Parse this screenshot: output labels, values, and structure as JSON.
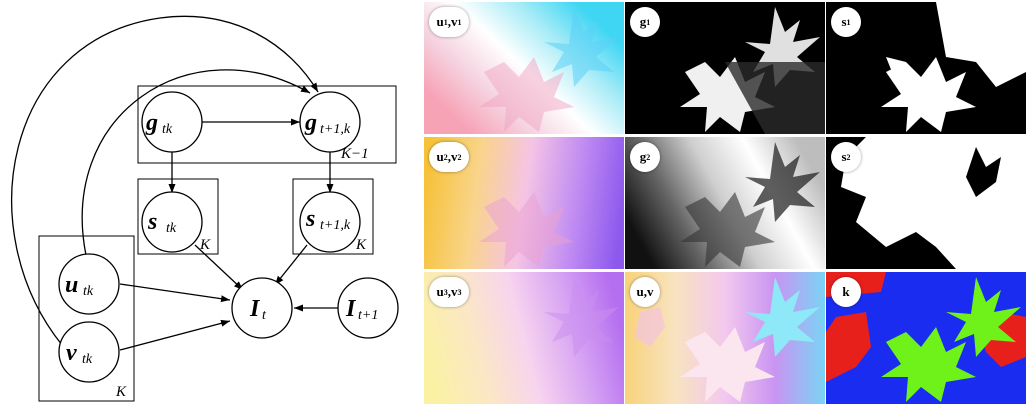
{
  "graphical_model": {
    "nodes": {
      "g_tk": {
        "symbol": "g",
        "sub": "tk"
      },
      "g_t1k": {
        "symbol": "g",
        "sub": "t+1,k"
      },
      "s_tk": {
        "symbol": "s",
        "sub": "tk"
      },
      "s_t1k": {
        "symbol": "s",
        "sub": "t+1,k"
      },
      "u_tk": {
        "symbol": "u",
        "sub": "tk"
      },
      "v_tk": {
        "symbol": "v",
        "sub": "tk"
      },
      "I_t": {
        "symbol": "I",
        "sub": "t"
      },
      "I_t1": {
        "symbol": "I",
        "sub": "t+1"
      }
    },
    "plates": {
      "g_plate": "K−1",
      "s_left_plate": "K",
      "s_right_plate": "K",
      "uv_plate": "K"
    }
  },
  "image_grid": {
    "cells": [
      {
        "id": "uv1",
        "label_main": "u",
        "label_sub": "1",
        "label_main2": "v",
        "label_sub2": "1",
        "style": "flow1"
      },
      {
        "id": "g1",
        "label_main": "g",
        "label_sub": "1",
        "style": "gray1"
      },
      {
        "id": "s1",
        "label_main": "s",
        "label_sub": "1",
        "style": "bin1"
      },
      {
        "id": "uv2",
        "label_main": "u",
        "label_sub": "2",
        "label_main2": "v",
        "label_sub2": "2",
        "style": "flow2"
      },
      {
        "id": "g2",
        "label_main": "g",
        "label_sub": "2",
        "style": "gray2"
      },
      {
        "id": "s2",
        "label_main": "s",
        "label_sub": "2",
        "style": "bin2"
      },
      {
        "id": "uv3",
        "label_main": "u",
        "label_sub": "3",
        "label_main2": "v",
        "label_sub2": "3",
        "style": "flow3"
      },
      {
        "id": "uv",
        "label_main": "u,v",
        "label_sub": "",
        "style": "flowall"
      },
      {
        "id": "k",
        "label_main": "k",
        "label_sub": "",
        "style": "seg"
      }
    ],
    "colors": {
      "seg_blue": "#1a2cf0",
      "seg_red": "#e8201c",
      "seg_green": "#6ef21a"
    }
  }
}
